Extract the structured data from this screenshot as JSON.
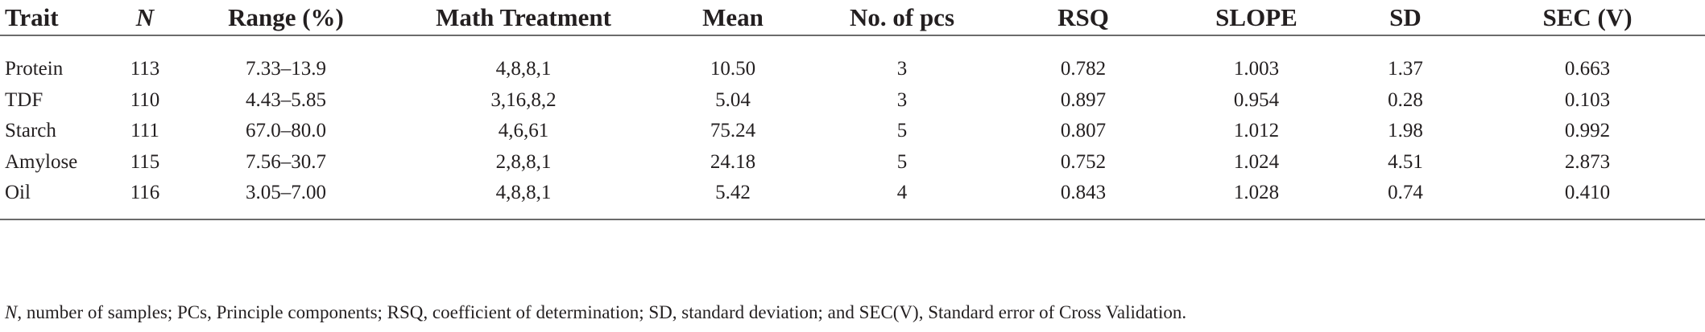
{
  "table": {
    "headers": [
      {
        "key": "trait",
        "label": "Trait"
      },
      {
        "key": "n",
        "label": "N"
      },
      {
        "key": "range",
        "label": "Range (%)"
      },
      {
        "key": "math",
        "label": "Math Treatment"
      },
      {
        "key": "mean",
        "label": "Mean"
      },
      {
        "key": "pcs",
        "label": "No. of pcs"
      },
      {
        "key": "rsq",
        "label": "RSQ"
      },
      {
        "key": "slope",
        "label": "SLOPE"
      },
      {
        "key": "sd",
        "label": "SD"
      },
      {
        "key": "sec",
        "label": "SEC (V)"
      }
    ],
    "rows": [
      [
        "Protein",
        "113",
        "7.33–13.9",
        "4,8,8,1",
        "10.50",
        "3",
        "0.782",
        "1.003",
        "1.37",
        "0.663"
      ],
      [
        "TDF",
        "110",
        "4.43–5.85",
        "3,16,8,2",
        "5.04",
        "3",
        "0.897",
        "0.954",
        "0.28",
        "0.103"
      ],
      [
        "Starch",
        "111",
        "67.0–80.0",
        "4,6,61",
        "75.24",
        "5",
        "0.807",
        "1.012",
        "1.98",
        "0.992"
      ],
      [
        "Amylose",
        "115",
        "7.56–30.7",
        "2,8,8,1",
        "24.18",
        "5",
        "0.752",
        "1.024",
        "4.51",
        "2.873"
      ],
      [
        "Oil",
        "116",
        "3.05–7.00",
        "4,8,8,1",
        "5.42",
        "4",
        "0.843",
        "1.028",
        "0.74",
        "0.410"
      ]
    ]
  },
  "footnote": {
    "italic_symbol": "N",
    "text": ", number of samples; PCs, Principle components; RSQ, coefficient of determination; SD, standard deviation; and SEC(V), Standard error of Cross Validation."
  }
}
